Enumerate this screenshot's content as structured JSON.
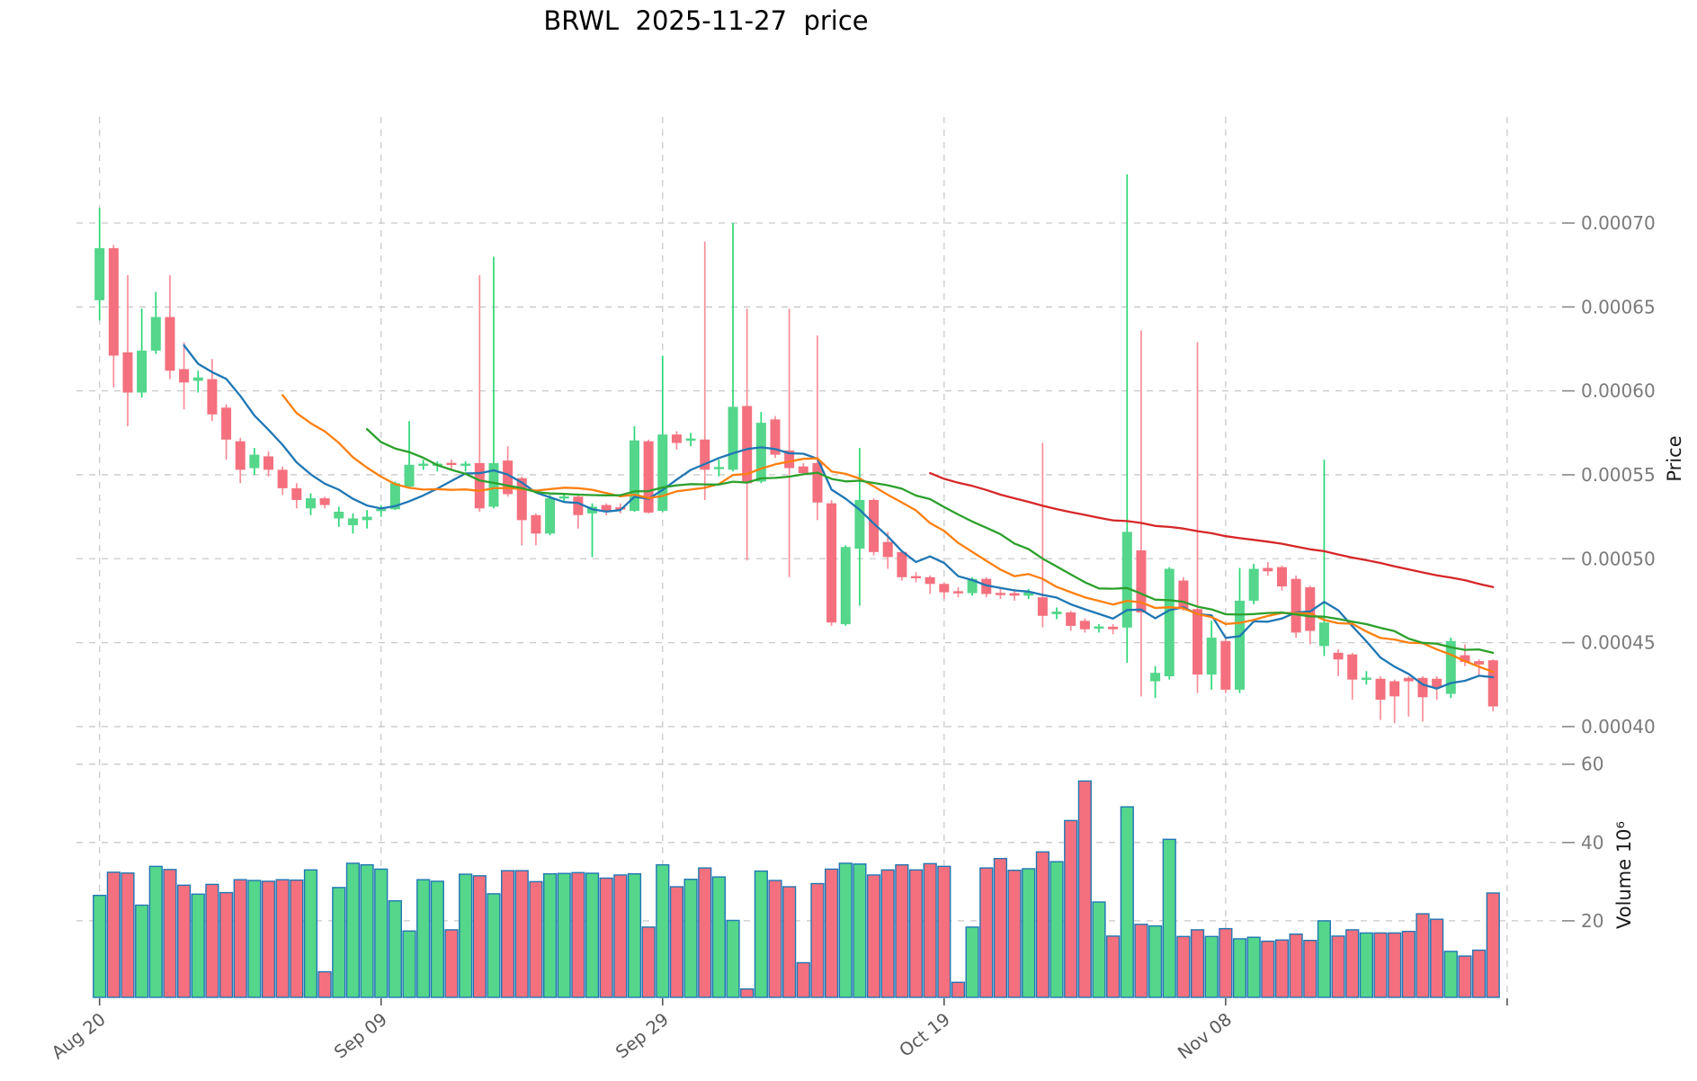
{
  "title": "BRWL  2025-11-27  price",
  "axes": {
    "price_label": "Price",
    "volume_label": "Volume 10⁶",
    "price_ticks": [
      {
        "label": "0.00070",
        "value": 70
      },
      {
        "label": "0.00065",
        "value": 65
      },
      {
        "label": "0.00060",
        "value": 60
      },
      {
        "label": "0.00055",
        "value": 55
      },
      {
        "label": "0.00050",
        "value": 50
      },
      {
        "label": "0.00045",
        "value": 45
      },
      {
        "label": "0.00040",
        "value": 40
      }
    ],
    "volume_ticks": [
      {
        "label": "60",
        "value": 60
      },
      {
        "label": "40",
        "value": 40
      },
      {
        "label": "20",
        "value": 20
      }
    ],
    "x_ticks": [
      {
        "label": "Aug 20",
        "day": 0
      },
      {
        "label": "Sep 09",
        "day": 20
      },
      {
        "label": "Sep 29",
        "day": 40
      },
      {
        "label": "Oct 19",
        "day": 60
      },
      {
        "label": "Nov 08",
        "day": 80
      },
      {
        "label": "",
        "day": 100
      }
    ]
  },
  "style": {
    "background": "#ffffff",
    "grid_color": "#c9c9c9",
    "up_color": "#54d68b",
    "up_wick_color": "#2ad876",
    "down_color": "#f4707e",
    "down_wick_color": "#f88d98",
    "volume_edge_color": "#2077b4",
    "ma_colors": {
      "short": "#1f77b4",
      "mid": "#ff7f0e",
      "long": "#2ca02c",
      "slow": "#d62728"
    },
    "price_tick_text": "#7a7a7a",
    "x_tick_text": "#595959",
    "axis_title_color": "#1a1a1a",
    "title_color": "#000000"
  },
  "chart_data": {
    "type": "candlestick+volume",
    "symbol": "BRWL",
    "as_of_date": "2025-11-27",
    "start_date": "2025-08-20",
    "price_unit": 1e-05,
    "volume_unit": 1000000,
    "ylim_price": [
      40,
      70
    ],
    "grid": true,
    "moving_averages": [
      {
        "name": "MA7",
        "window": 7,
        "color_key": "short"
      },
      {
        "name": "MA14",
        "window": 14,
        "color_key": "mid"
      },
      {
        "name": "MA20",
        "window": 20,
        "color_key": "long"
      },
      {
        "name": "MA60",
        "window": 60,
        "color_key": "slow"
      }
    ],
    "ohlc": [
      [
        65.4,
        70.9,
        64.2,
        68.5
      ],
      [
        68.5,
        68.7,
        60.2,
        62.1
      ],
      [
        62.3,
        66.9,
        57.9,
        59.9
      ],
      [
        59.9,
        64.9,
        59.6,
        62.4
      ],
      [
        62.4,
        65.9,
        62.2,
        64.4
      ],
      [
        64.4,
        66.9,
        60.7,
        61.2
      ],
      [
        61.3,
        62.9,
        58.9,
        60.5
      ],
      [
        60.6,
        61.2,
        59.9,
        60.8
      ],
      [
        60.7,
        61.9,
        58.2,
        58.6
      ],
      [
        59.0,
        59.2,
        55.9,
        57.1
      ],
      [
        57.0,
        57.2,
        54.5,
        55.3
      ],
      [
        55.4,
        56.6,
        55.0,
        56.2
      ],
      [
        56.1,
        56.4,
        54.9,
        55.3
      ],
      [
        55.3,
        55.5,
        53.8,
        54.2
      ],
      [
        54.2,
        54.5,
        53.0,
        53.5
      ],
      [
        53.0,
        53.9,
        52.6,
        53.6
      ],
      [
        53.6,
        53.7,
        53.0,
        53.2
      ],
      [
        52.4,
        53.1,
        51.9,
        52.8
      ],
      [
        52.0,
        52.7,
        51.5,
        52.4
      ],
      [
        52.3,
        52.9,
        51.8,
        52.5
      ],
      [
        52.85,
        53.2,
        52.5,
        52.95
      ],
      [
        52.95,
        54.6,
        52.9,
        54.5
      ],
      [
        54.3,
        58.2,
        54.2,
        55.6
      ],
      [
        55.55,
        55.9,
        55.3,
        55.65
      ],
      [
        55.55,
        55.8,
        55.2,
        55.65
      ],
      [
        55.7,
        55.9,
        55.3,
        55.6
      ],
      [
        55.55,
        55.8,
        55.2,
        55.65
      ],
      [
        55.7,
        66.9,
        52.8,
        53.0
      ],
      [
        53.1,
        68.0,
        53.0,
        55.7
      ],
      [
        55.85,
        56.7,
        53.7,
        53.85
      ],
      [
        54.8,
        54.9,
        50.8,
        52.3
      ],
      [
        52.6,
        52.7,
        50.8,
        51.5
      ],
      [
        51.5,
        53.8,
        51.4,
        53.6
      ],
      [
        53.6,
        53.9,
        53.4,
        53.7
      ],
      [
        53.7,
        53.8,
        51.8,
        52.6
      ],
      [
        52.7,
        53.3,
        50.1,
        53.1
      ],
      [
        53.2,
        53.3,
        52.6,
        52.85
      ],
      [
        53.05,
        53.3,
        52.7,
        52.95
      ],
      [
        52.85,
        57.9,
        52.8,
        57.05
      ],
      [
        57.0,
        57.1,
        52.7,
        52.75
      ],
      [
        52.85,
        62.1,
        52.8,
        57.4
      ],
      [
        57.4,
        57.6,
        56.5,
        56.9
      ],
      [
        57.05,
        57.5,
        56.7,
        57.15
      ],
      [
        57.1,
        68.9,
        53.5,
        55.3
      ],
      [
        55.35,
        55.9,
        54.9,
        55.45
      ],
      [
        55.3,
        70.0,
        55.2,
        59.05
      ],
      [
        59.1,
        64.9,
        49.9,
        54.5
      ],
      [
        54.6,
        58.75,
        54.5,
        58.1
      ],
      [
        58.3,
        58.5,
        56.0,
        56.2
      ],
      [
        56.45,
        64.9,
        48.9,
        55.4
      ],
      [
        55.5,
        55.7,
        55.0,
        55.1
      ],
      [
        55.7,
        63.3,
        52.3,
        53.35
      ],
      [
        53.3,
        53.5,
        46.0,
        46.2
      ],
      [
        46.1,
        50.8,
        46.0,
        50.7
      ],
      [
        50.6,
        56.6,
        47.2,
        53.5
      ],
      [
        53.5,
        53.6,
        50.2,
        50.4
      ],
      [
        51.0,
        51.6,
        49.4,
        50.1
      ],
      [
        50.4,
        50.5,
        48.7,
        48.9
      ],
      [
        48.95,
        49.2,
        48.6,
        48.85
      ],
      [
        48.9,
        49.0,
        47.9,
        48.5
      ],
      [
        48.5,
        48.6,
        47.6,
        48.0
      ],
      [
        48.05,
        48.3,
        47.7,
        47.95
      ],
      [
        47.95,
        48.9,
        47.8,
        48.8
      ],
      [
        48.8,
        48.9,
        47.7,
        47.9
      ],
      [
        47.95,
        48.2,
        47.6,
        47.85
      ],
      [
        47.95,
        48.2,
        47.5,
        47.8
      ],
      [
        47.8,
        48.2,
        47.6,
        48.0
      ],
      [
        47.7,
        56.9,
        45.9,
        46.6
      ],
      [
        46.7,
        47.1,
        46.4,
        46.85
      ],
      [
        46.8,
        46.9,
        45.7,
        46.0
      ],
      [
        46.3,
        46.45,
        45.6,
        45.8
      ],
      [
        45.85,
        46.1,
        45.6,
        45.95
      ],
      [
        45.95,
        46.1,
        45.5,
        45.8
      ],
      [
        45.9,
        72.9,
        43.8,
        51.6
      ],
      [
        50.5,
        63.6,
        41.8,
        46.8
      ],
      [
        42.7,
        43.6,
        41.7,
        43.2
      ],
      [
        43.0,
        49.5,
        42.8,
        49.4
      ],
      [
        48.7,
        48.9,
        46.9,
        47.0
      ],
      [
        47.0,
        62.9,
        42.0,
        43.1
      ],
      [
        43.1,
        46.3,
        42.2,
        45.3
      ],
      [
        45.1,
        45.3,
        42.0,
        42.2
      ],
      [
        42.2,
        49.45,
        42.0,
        47.5
      ],
      [
        47.5,
        49.7,
        47.3,
        49.4
      ],
      [
        49.45,
        49.8,
        49.0,
        49.25
      ],
      [
        49.5,
        49.6,
        48.1,
        48.35
      ],
      [
        48.8,
        49.0,
        45.3,
        45.6
      ],
      [
        48.3,
        48.4,
        44.9,
        45.7
      ],
      [
        44.8,
        55.9,
        44.2,
        46.2
      ],
      [
        44.4,
        44.6,
        43.0,
        44.0
      ],
      [
        44.3,
        44.4,
        41.6,
        42.8
      ],
      [
        42.8,
        43.3,
        42.5,
        42.9
      ],
      [
        42.85,
        43.0,
        40.4,
        41.6
      ],
      [
        42.7,
        42.8,
        40.2,
        41.8
      ],
      [
        42.9,
        43.0,
        40.6,
        42.7
      ],
      [
        42.9,
        43.0,
        40.3,
        41.75
      ],
      [
        42.85,
        43.0,
        41.6,
        42.3
      ],
      [
        41.95,
        45.3,
        41.7,
        45.1
      ],
      [
        44.25,
        44.9,
        43.6,
        43.85
      ],
      [
        43.9,
        44.0,
        43.0,
        43.7
      ],
      [
        43.95,
        44.0,
        40.9,
        41.2
      ]
    ],
    "volume": [
      26.5,
      32.4,
      32.2,
      24.0,
      33.9,
      33.1,
      29.1,
      26.8,
      29.3,
      27.2,
      30.5,
      30.3,
      30.1,
      30.5,
      30.4,
      33.0,
      7.0,
      28.5,
      34.7,
      34.3,
      33.2,
      25.1,
      17.4,
      30.5,
      30.1,
      17.7,
      31.9,
      31.5,
      26.9,
      32.8,
      32.8,
      30.0,
      32.0,
      32.1,
      32.3,
      32.15,
      30.9,
      31.7,
      32.0,
      18.4,
      34.3,
      28.7,
      30.6,
      33.5,
      31.2,
      20.1,
      2.6,
      32.7,
      30.3,
      28.7,
      9.3,
      29.5,
      33.2,
      34.7,
      34.5,
      31.7,
      33.0,
      34.3,
      33.0,
      34.6,
      33.9,
      4.3,
      18.4,
      33.5,
      35.9,
      32.9,
      33.3,
      37.6,
      35.1,
      45.6,
      55.7,
      24.8,
      16.1,
      49.1,
      19.1,
      18.7,
      40.8,
      16.0,
      17.7,
      16.0,
      18.0,
      15.4,
      15.8,
      14.8,
      15.1,
      16.6,
      15.0,
      20.0,
      16.1,
      17.7,
      16.9,
      16.9,
      16.9,
      17.3,
      21.8,
      20.4,
      12.2,
      11.0,
      12.5,
      27.1
    ]
  }
}
